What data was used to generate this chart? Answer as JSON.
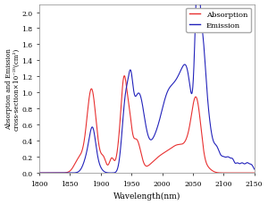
{
  "xlabel": "Wavelength(nm)",
  "ylabel": "Absorption and Emission\ncross-section×10⁻²⁰(cm²)",
  "xlim": [
    1800,
    2150
  ],
  "ylim": [
    0,
    2.1
  ],
  "yticks": [
    0.0,
    0.2,
    0.4,
    0.6,
    0.8,
    1.0,
    1.2,
    1.4,
    1.6,
    1.8,
    2.0
  ],
  "xticks": [
    1800,
    1850,
    1900,
    1950,
    2000,
    2050,
    2100,
    2150
  ],
  "absorption_color": "#e83030",
  "emission_color": "#2222bb",
  "legend_labels": [
    "Absorption",
    "Emission"
  ],
  "figsize": [
    3.0,
    2.3
  ],
  "dpi": 100
}
